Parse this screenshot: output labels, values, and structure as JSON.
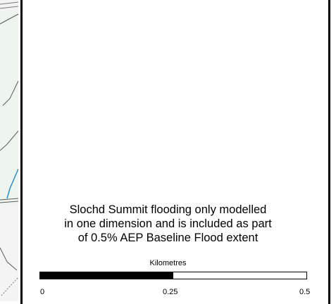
{
  "map": {
    "note_lines": [
      "Slochd Summit flooding only modelled",
      "in one dimension and is included as part",
      "of 0.5% AEP Baseline Flood extent"
    ]
  },
  "scale_bar": {
    "units_label": "Kilometres",
    "ticks": [
      "0",
      "0.25",
      "0.5"
    ],
    "filled_fraction": 0.5
  },
  "colors": {
    "basemap_background": "#eef5ee",
    "watercourse": "#2b8fc9",
    "boundary_lines": "#5a5a5a",
    "panel_border": "#000000"
  }
}
